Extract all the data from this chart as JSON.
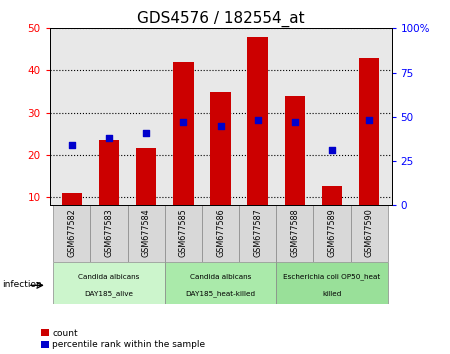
{
  "title": "GDS4576 / 182554_at",
  "categories": [
    "GSM677582",
    "GSM677583",
    "GSM677584",
    "GSM677585",
    "GSM677586",
    "GSM677587",
    "GSM677588",
    "GSM677589",
    "GSM677590"
  ],
  "counts": [
    11,
    23.5,
    21.5,
    42,
    35,
    48,
    34,
    12.5,
    43
  ],
  "percentile_ranks": [
    34,
    38,
    41,
    47,
    45,
    48,
    47,
    31,
    48
  ],
  "ylim_left": [
    8,
    50
  ],
  "ylim_right": [
    0,
    100
  ],
  "yticks_left": [
    10,
    20,
    30,
    40,
    50
  ],
  "yticks_right": [
    0,
    25,
    50,
    75,
    100
  ],
  "ytick_labels_right": [
    "0",
    "25",
    "50",
    "75",
    "100%"
  ],
  "groups": [
    {
      "label": "Candida albicans\nDAY185_alive",
      "start": 0,
      "end": 3,
      "color": "#ccf5cc"
    },
    {
      "label": "Candida albicans\nDAY185_heat-killed",
      "start": 3,
      "end": 6,
      "color": "#aaeaaa"
    },
    {
      "label": "Escherichia coli OP50_heat\nkilled",
      "start": 6,
      "end": 9,
      "color": "#99e099"
    }
  ],
  "group_label": "infection",
  "bar_color": "#cc0000",
  "dot_color": "#0000cc",
  "bar_width": 0.55,
  "plot_bg_color": "#e8e8e8",
  "title_fontsize": 11,
  "legend_count_label": "count",
  "legend_percentile_label": "percentile rank within the sample"
}
